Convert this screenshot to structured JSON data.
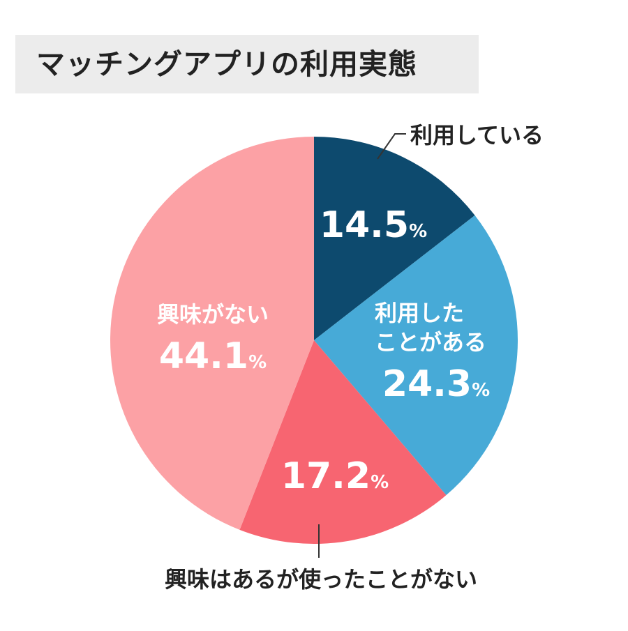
{
  "title": "マッチングアプリの利用実態",
  "chart_data": {
    "type": "pie",
    "title": "マッチングアプリの利用実態",
    "unit": "%",
    "series": [
      {
        "slices": [
          {
            "label": "利用している",
            "value": 14.5,
            "color": "#0d4a6e",
            "text_color": "#ffffff"
          },
          {
            "label": "利用したことがある",
            "label_lines": [
              "利用した",
              "ことがある"
            ],
            "value": 24.3,
            "color": "#47aad7",
            "text_color": "#ffffff"
          },
          {
            "label": "興味はあるが使ったことがない",
            "value": 17.2,
            "color": "#f76571",
            "text_color": "#ffffff"
          },
          {
            "label": "興味がない",
            "value": 44.1,
            "color": "#fca1a5",
            "text_color": "#ffffff"
          }
        ]
      }
    ],
    "start": "12 o'clock",
    "direction": "clockwise",
    "legend": "none"
  }
}
